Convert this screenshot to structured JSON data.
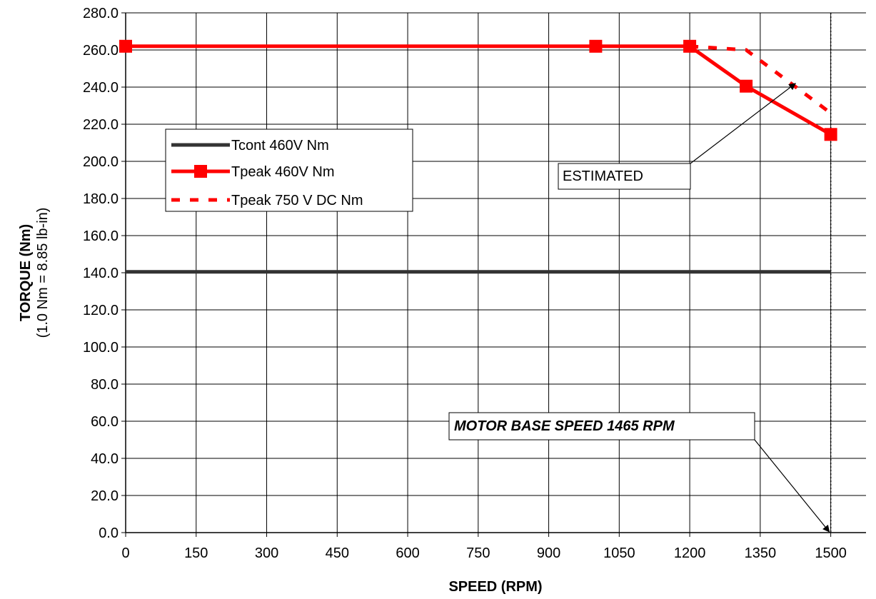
{
  "chart_data": {
    "type": "line",
    "xlabel": "SPEED (RPM)",
    "ylabel": "TORQUE (Nm)",
    "ylabel_sub": "(1.0 Nm = 8.85 lb-in)",
    "xlim": [
      0,
      1575
    ],
    "ylim": [
      0,
      280
    ],
    "x_ticks": [
      0,
      150,
      300,
      450,
      600,
      750,
      900,
      1050,
      1200,
      1350,
      1500
    ],
    "y_ticks": [
      0,
      20,
      40,
      60,
      80,
      100,
      120,
      140,
      160,
      180,
      200,
      220,
      240,
      260,
      280
    ],
    "x_tick_labels": [
      "0",
      "150",
      "300",
      "450",
      "600",
      "750",
      "900",
      "1050",
      "1200",
      "1350",
      "1500"
    ],
    "y_tick_labels": [
      "0.0",
      "20.0",
      "40.0",
      "60.0",
      "80.0",
      "100.0",
      "120.0",
      "140.0",
      "160.0",
      "180.0",
      "200.0",
      "220.0",
      "240.0",
      "260.0",
      "280.0"
    ],
    "grid": true,
    "legend_position": "upper-left, inside plot",
    "series": [
      {
        "name": "Tcont 460V Nm",
        "style": "solid",
        "color": "#333333",
        "markers": false,
        "x": [
          0,
          1500
        ],
        "y": [
          140.5,
          140.5
        ]
      },
      {
        "name": "Tpeak 460V Nm",
        "style": "solid",
        "color": "#ff0000",
        "markers": true,
        "x": [
          0,
          1000,
          1200,
          1320,
          1500
        ],
        "y": [
          262,
          262,
          262,
          240.5,
          214.5
        ]
      },
      {
        "name": "Tpeak 750 V DC Nm",
        "style": "dashed",
        "color": "#ff0000",
        "markers": false,
        "x": [
          1200,
          1320,
          1500
        ],
        "y": [
          262,
          260,
          226
        ]
      }
    ],
    "reference_line": {
      "x": 1500,
      "style": "dotted"
    },
    "annotations": [
      {
        "text": "ESTIMATED",
        "style": "normal",
        "arrow_to": {
          "x": 1425,
          "y": 242
        }
      },
      {
        "text": "MOTOR BASE SPEED  1465 RPM",
        "style": "bold-italic",
        "arrow_to": {
          "x": 1500,
          "y": 0
        }
      }
    ]
  }
}
